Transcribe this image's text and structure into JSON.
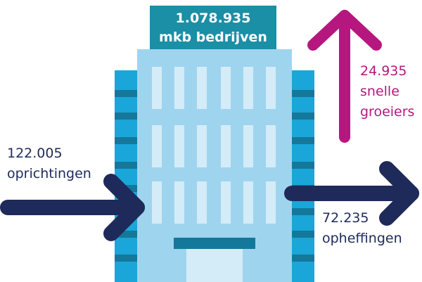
{
  "sign": {
    "line1": "1.078.935",
    "line2": "mkb bedrijven"
  },
  "inflow": {
    "number": "122.005",
    "label": "oprichtingen"
  },
  "outflow": {
    "number": "72.235",
    "label": "opheffingen"
  },
  "growth": {
    "number": "24.935",
    "line2": "snelle",
    "line3": "groeiers"
  }
}
